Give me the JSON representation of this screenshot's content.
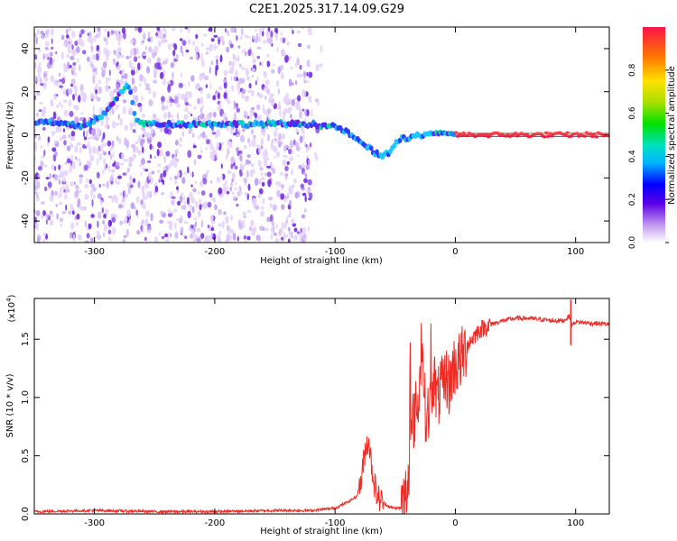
{
  "title": "C2E1.2025.317.14.09.G29",
  "chart_data": [
    {
      "type": "heatmap",
      "xlabel": "Height of straight line (km)",
      "ylabel": "Frequency (Hz)",
      "xlim": [
        -350,
        128
      ],
      "ylim": [
        -50,
        50
      ],
      "x_ticks": [
        -300,
        -200,
        -100,
        0,
        100
      ],
      "x_tick_labels": [
        "-300",
        "-200",
        "-100",
        "0",
        "100"
      ],
      "y_ticks": [
        -40,
        -20,
        0,
        20,
        40
      ],
      "y_tick_labels": [
        "-40",
        "-20",
        "0",
        "20",
        "40"
      ],
      "colorbar": {
        "label": "Normalized spectral amplitude",
        "range": [
          0,
          1
        ],
        "ticks": [
          0,
          0.2,
          0.4,
          0.6,
          0.8
        ],
        "tick_labels": [
          "0.0",
          "0.2",
          "0.4",
          "0.6",
          "0.8"
        ]
      },
      "ridge": {
        "name": "dominant frequency track",
        "x": [
          -345,
          -330,
          -310,
          -295,
          -285,
          -278,
          -272,
          -265,
          -255,
          -240,
          -220,
          -200,
          -180,
          -160,
          -140,
          -120,
          -105,
          -95,
          -90,
          -85,
          -80,
          -75,
          -70,
          -65,
          -60,
          -55,
          -50,
          -45,
          -40,
          -35,
          -30,
          -25,
          -20,
          -15,
          -10,
          -5,
          0,
          20,
          60,
          100,
          128
        ],
        "y": [
          6,
          5,
          4,
          8,
          14,
          20,
          24,
          6,
          5,
          5,
          5,
          5,
          5,
          5,
          5,
          5,
          4,
          3,
          1,
          -1,
          -3,
          -5,
          -7,
          -9,
          -10,
          -8,
          -4,
          -2,
          -2,
          -1,
          0,
          0,
          1,
          1,
          0,
          0,
          0,
          0,
          0,
          0,
          0
        ]
      }
    },
    {
      "type": "line",
      "xlabel": "Height of straight line (km)",
      "ylabel": "SNR (10 * v/v)",
      "scale_label": "(x10",
      "scale_exp": "4",
      "scale_close": ")",
      "xlim": [
        -350,
        128
      ],
      "ylim": [
        0,
        1.85
      ],
      "x_ticks": [
        -300,
        -200,
        -100,
        0,
        100
      ],
      "x_tick_labels": [
        "-300",
        "-200",
        "-100",
        "0",
        "100"
      ],
      "y_ticks": [
        0,
        0.5,
        1.0,
        1.5
      ],
      "y_tick_labels": [
        "0.0",
        "0.5",
        "1.0",
        "1.5"
      ],
      "color": "#ee2a24",
      "series": [
        {
          "name": "SNR",
          "x": [
            -350,
            -300,
            -250,
            -200,
            -150,
            -120,
            -100,
            -90,
            -82,
            -78,
            -75,
            -72,
            -70,
            -68,
            -65,
            -62,
            -60,
            -55,
            -50,
            -45,
            -40,
            -38,
            -35,
            -30,
            -28,
            -25,
            -22,
            -20,
            -18,
            -15,
            -12,
            -10,
            -8,
            -5,
            -2,
            0,
            3,
            6,
            10,
            15,
            20,
            30,
            40,
            50,
            60,
            70,
            80,
            90,
            95,
            97,
            100,
            110,
            128
          ],
          "y": [
            0.02,
            0.03,
            0.02,
            0.02,
            0.03,
            0.03,
            0.05,
            0.1,
            0.15,
            0.3,
            0.55,
            0.65,
            0.45,
            0.3,
            0.15,
            0.12,
            0.1,
            0.06,
            0.05,
            0.05,
            0.2,
            0.5,
            0.8,
            1.0,
            1.55,
            0.9,
            0.85,
            1.05,
            1.2,
            0.95,
            1.1,
            1.05,
            1.2,
            1.1,
            1.25,
            1.28,
            1.3,
            1.35,
            1.45,
            1.52,
            1.58,
            1.63,
            1.66,
            1.68,
            1.68,
            1.67,
            1.66,
            1.66,
            1.7,
            1.62,
            1.65,
            1.64,
            1.63
          ]
        }
      ]
    }
  ]
}
